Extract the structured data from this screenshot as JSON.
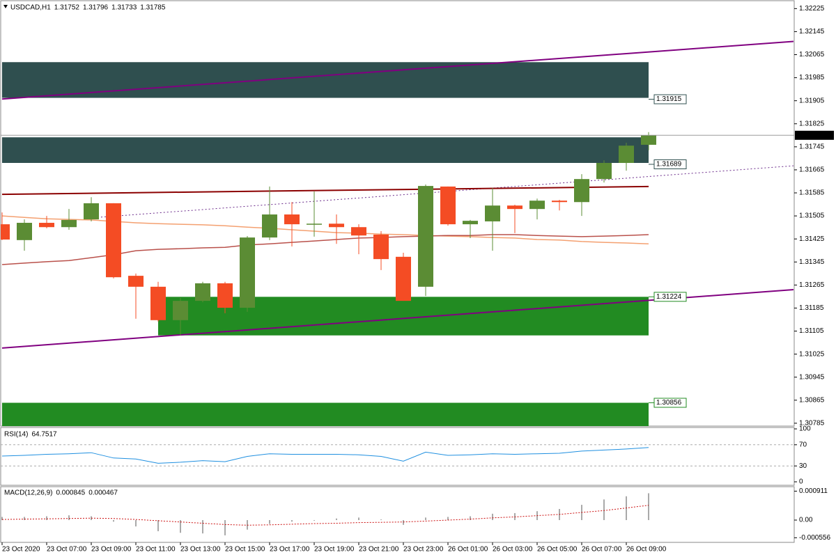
{
  "chart_data": [
    {
      "type": "candlestick",
      "title": "USDCAD,H1",
      "categories": [
        "23 Oct 2020",
        null,
        "23 Oct 07:00",
        null,
        "23 Oct 09:00",
        null,
        "23 Oct 11:00",
        null,
        "23 Oct 13:00",
        null,
        "23 Oct 15:00",
        null,
        "23 Oct 17:00",
        null,
        "23 Oct 19:00",
        null,
        "23 Oct 21:00",
        null,
        "23 Oct 23:00",
        null,
        "26 Oct 01:00",
        null,
        "26 Oct 03:00",
        null,
        "26 Oct 05:00",
        null,
        "26 Oct 07:00",
        null,
        "26 Oct 09:00",
        null
      ],
      "open": [
        1.31476,
        1.31421,
        1.31481,
        1.31466,
        1.31493,
        1.31549,
        1.31297,
        1.31259,
        1.31143,
        1.3121,
        1.31271,
        1.31186,
        1.3143,
        1.3151,
        1.31476,
        1.31478,
        1.31466,
        1.3144,
        1.31363,
        1.31259,
        1.31607,
        1.31476,
        1.31486,
        1.31541,
        1.31529,
        1.31558,
        1.31553,
        1.31633,
        1.31689,
        1.31752
      ],
      "high": [
        1.31517,
        1.31493,
        1.31505,
        1.31529,
        1.3157,
        1.31549,
        1.31305,
        1.31276,
        1.3122,
        1.31276,
        1.31276,
        1.31435,
        1.31607,
        1.31553,
        1.3159,
        1.3151,
        1.31476,
        1.31452,
        1.31377,
        1.31614,
        1.31607,
        1.31491,
        1.31602,
        1.31544,
        1.31565,
        1.31561,
        1.3165,
        1.31698,
        1.31759,
        1.31796
      ],
      "low": [
        1.31421,
        1.31384,
        1.31462,
        1.31457,
        1.31486,
        1.31288,
        1.31148,
        1.31138,
        1.3109,
        1.31205,
        1.31167,
        1.31172,
        1.31421,
        1.31399,
        1.31433,
        1.31408,
        1.31372,
        1.31317,
        1.3121,
        1.31227,
        1.31471,
        1.31428,
        1.31384,
        1.31445,
        1.31493,
        1.31524,
        1.31505,
        1.31621,
        1.31662,
        1.31733
      ],
      "close": [
        1.31423,
        1.31481,
        1.31466,
        1.31491,
        1.31549,
        1.31292,
        1.31259,
        1.31143,
        1.3121,
        1.31271,
        1.31186,
        1.3143,
        1.3151,
        1.31476,
        1.31478,
        1.31466,
        1.31437,
        1.31355,
        1.3121,
        1.31609,
        1.31476,
        1.31488,
        1.31541,
        1.31529,
        1.31558,
        1.31553,
        1.31633,
        1.31689,
        1.31749,
        1.31785
      ],
      "up_color": "#5b8c34",
      "down_color": "#f44c24",
      "ylim": [
        1.30775,
        1.3225
      ],
      "yticks": [
        1.32225,
        1.32145,
        1.32065,
        1.31985,
        1.31905,
        1.31825,
        1.31745,
        1.31665,
        1.31585,
        1.31505,
        1.31425,
        1.31345,
        1.31265,
        1.31185,
        1.31105,
        1.31025,
        1.30945,
        1.30865,
        1.30785
      ],
      "zones": [
        {
          "low": 1.31915,
          "high": 1.32039,
          "start": 0,
          "end": 29,
          "color": "#2f4f4f",
          "label_at": "low"
        },
        {
          "low": 1.31689,
          "high": 1.31778,
          "start": 0,
          "end": 29,
          "color": "#2f4f4f",
          "label_at": "low"
        },
        {
          "low": 1.3109,
          "high": 1.31224,
          "start": 7,
          "end": 29,
          "color": "#228b22",
          "label_at": "high"
        },
        {
          "low": 1.30775,
          "high": 1.30856,
          "start": 0,
          "end": 29,
          "color": "#228b22",
          "label_at": "high"
        }
      ],
      "lines": [
        {
          "x": [
            0,
            35.5
          ],
          "y": [
            1.31911,
            1.32111
          ],
          "color": "#800080",
          "style": "solid"
        },
        {
          "x": [
            0,
            35.5
          ],
          "y": [
            1.31046,
            1.31249
          ],
          "color": "#800080",
          "style": "solid"
        },
        {
          "x": [
            4.28,
            35.5
          ],
          "y": [
            1.315,
            1.31679
          ],
          "color": "#6a2a8a",
          "style": "dotted"
        },
        {
          "x": [
            0,
            29
          ],
          "y": [
            1.3158,
            1.31607
          ],
          "color": "#8b0000",
          "style": "solid"
        }
      ],
      "series": [
        {
          "color": "#f4a070",
          "values": [
            1.31505,
            1.315,
            1.31495,
            1.31493,
            1.31491,
            1.31486,
            1.31481,
            1.31478,
            1.31476,
            1.31474,
            1.31471,
            1.31466,
            1.31462,
            1.31457,
            1.31452,
            1.31447,
            1.31445,
            1.31442,
            1.3144,
            1.31437,
            1.31435,
            1.31433,
            1.3143,
            1.31428,
            1.31423,
            1.31421,
            1.31416,
            1.31413,
            1.31411,
            1.31408
          ]
        },
        {
          "color": "#b9504a",
          "values": [
            1.31336,
            1.31341,
            1.31346,
            1.3135,
            1.3136,
            1.3137,
            1.31384,
            1.31389,
            1.31391,
            1.31394,
            1.31396,
            1.31404,
            1.31408,
            1.31413,
            1.31418,
            1.31423,
            1.31428,
            1.3143,
            1.31433,
            1.31435,
            1.31437,
            1.31437,
            1.3144,
            1.3144,
            1.31437,
            1.31435,
            1.31433,
            1.31435,
            1.31437,
            1.3144
          ]
        }
      ]
    },
    {
      "type": "line",
      "title": "RSI(14)",
      "color": "#1e8fe0",
      "values": [
        48.7,
        50,
        52,
        53,
        55,
        45,
        43,
        35,
        37,
        40,
        38,
        48,
        53,
        52,
        52,
        52,
        51,
        48,
        39,
        56,
        50,
        51,
        53,
        52,
        53,
        54,
        58,
        60,
        62,
        64.7517
      ],
      "ylim": [
        0,
        100
      ],
      "yticks": [
        100,
        70,
        30,
        0
      ]
    },
    {
      "type": "bar",
      "title": "MACD(12,26,9)",
      "color": "#a9a9a9",
      "signal_color": "#cc1010",
      "values": [
        0.0001,
        0.0001,
        0.00012,
        0.00015,
        0.00012,
        -5e-05,
        -0.0002,
        -0.00035,
        -0.0004,
        -0.00042,
        -0.00048,
        -0.0003,
        -0.00012,
        -5e-05,
        -2e-05,
        5e-05,
        8e-05,
        2e-05,
        -0.00015,
        8e-05,
        0.0001,
        0.00012,
        0.0002,
        0.00022,
        0.00028,
        0.00035,
        0.00048,
        0.00065,
        0.00075,
        0.000845
      ],
      "signal": [
        2e-05,
        3e-05,
        4e-05,
        5e-05,
        6e-05,
        5e-05,
        2e-05,
        -2e-05,
        -6e-05,
        -0.0001,
        -0.00014,
        -0.00016,
        -0.00015,
        -0.00013,
        -0.00011,
        -0.0001,
        -8e-05,
        -7e-05,
        -6e-05,
        -3e-05,
        0.0,
        3e-05,
        7e-05,
        0.0001,
        0.00014,
        0.00018,
        0.00024,
        0.0003,
        0.00038,
        0.000467
      ],
      "ylim": [
        -0.00068,
        0.00103
      ],
      "yticks": [
        0.000911,
        {
          "value": 0,
          "label": "0.00"
        },
        -0.000556
      ]
    }
  ]
}
